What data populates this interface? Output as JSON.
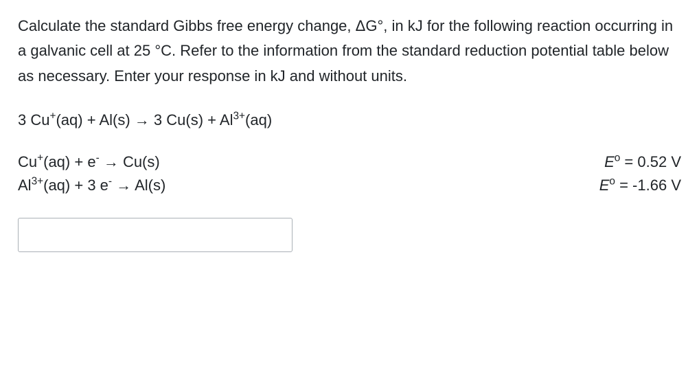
{
  "question": {
    "text_parts": {
      "p1": "Calculate the standard Gibbs free energy change, ΔG°, in kJ for the following reaction occurring in a galvanic cell at 25 °C. Refer to the information from the standard reduction potential table below as necessary. Enter your response in kJ and without units."
    }
  },
  "overall_reaction": {
    "coef_cu_ion": "3 Cu",
    "cu_charge": "+",
    "cu_state": "(aq)",
    "plus1": " + ",
    "al_solid": "Al(s)",
    "arrow": " → ",
    "coef_cu_solid": "3 Cu(s)",
    "plus2": " + ",
    "al_ion": "Al",
    "al_charge": "3+",
    "al_state": "(aq)"
  },
  "half_reactions": [
    {
      "species1": "Cu",
      "charge1": "+",
      "state1": "(aq)",
      "plus": " + e",
      "electron_charge": "-",
      "arrow": " → ",
      "product": "Cu(s)",
      "E_symbol": "E",
      "E_sup": "o",
      "E_value": " = 0.52 V"
    },
    {
      "species1": "Al",
      "charge1": "3+",
      "state1": "(aq)",
      "plus": " + 3 e",
      "electron_charge": "-",
      "arrow": " → ",
      "product": "Al(s)",
      "E_symbol": "E",
      "E_sup": "o",
      "E_value": " = -1.66 V"
    }
  ],
  "input": {
    "value": "",
    "placeholder": ""
  }
}
